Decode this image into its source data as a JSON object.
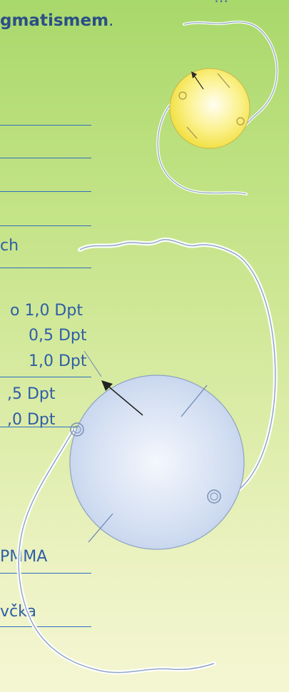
{
  "intro": {
    "fragment_top": "…",
    "bold_text": "gmatismem",
    "period": "."
  },
  "rows": [
    {
      "text": "ch"
    },
    {
      "text": "o 1,0 Dpt"
    },
    {
      "text": "0,5 Dpt"
    },
    {
      "text": "1,0 Dpt"
    },
    {
      "text": ",5 Dpt"
    },
    {
      "text": ",0 Dpt"
    },
    {
      "text": "PMMA"
    },
    {
      "text": "vč̌ka"
    }
  ],
  "colors": {
    "background_top": "#a9d86b",
    "background_bottom": "#f4f6d2",
    "text": "#2f5ea6",
    "rule": "#2f6fc0",
    "small_lens": "#f5e45a",
    "large_lens": "#c9d8ef"
  },
  "illustrations": [
    "small-intraocular-lens-illustration",
    "large-intraocular-lens-illustration"
  ]
}
